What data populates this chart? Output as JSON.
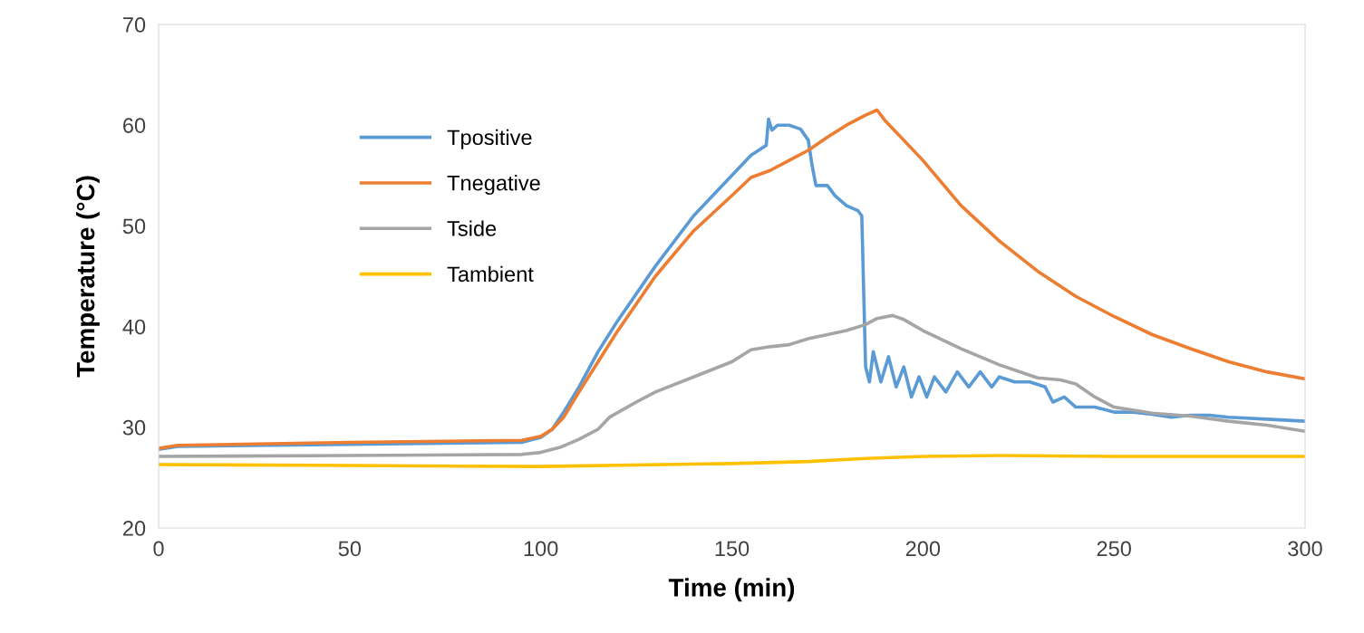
{
  "chart_data": {
    "type": "line",
    "xlabel": "Time (min)",
    "ylabel": "Temperature (°C)",
    "xlim": [
      0,
      300
    ],
    "ylim": [
      20,
      70
    ],
    "xticks": [
      0,
      50,
      100,
      150,
      200,
      250,
      300
    ],
    "yticks": [
      20,
      30,
      40,
      50,
      60,
      70
    ],
    "grid": false,
    "legend": "top left",
    "marker": "none",
    "line_style": "solid",
    "series": [
      {
        "name": "Tpositive",
        "color": "#5b9bd5",
        "x": [
          0,
          5,
          50,
          95,
          100,
          103,
          106,
          110,
          115,
          120,
          130,
          140,
          150,
          155,
          159,
          159.6,
          160.5,
          162,
          165,
          168,
          170,
          171,
          172,
          175,
          177,
          180,
          183,
          184,
          185,
          186,
          187,
          189,
          191,
          193,
          195,
          197,
          199,
          201,
          203,
          206,
          209,
          212,
          215,
          218,
          220,
          224,
          228,
          232,
          234,
          237,
          240,
          245,
          250,
          255,
          260,
          265,
          270,
          275,
          280,
          290,
          300
        ],
        "values": [
          27.8,
          28.1,
          28.3,
          28.5,
          29,
          29.8,
          31.5,
          34,
          37.5,
          40.5,
          46,
          51,
          55,
          57,
          58,
          60.6,
          59.5,
          60,
          60,
          59.6,
          58.5,
          56,
          54,
          54,
          53,
          52,
          51.5,
          51,
          36,
          34.5,
          37.5,
          34.5,
          37,
          34,
          36,
          33,
          35,
          33,
          35,
          33.5,
          35.5,
          34,
          35.5,
          34,
          35,
          34.5,
          34.5,
          34,
          32.5,
          33,
          32,
          32,
          31.5,
          31.5,
          31.3,
          31,
          31.2,
          31.2,
          31,
          30.8,
          30.6
        ]
      },
      {
        "name": "Tnegative",
        "color": "#ed7d31",
        "x": [
          0,
          5,
          50,
          95,
          100,
          103,
          106,
          110,
          115,
          120,
          130,
          140,
          150,
          155,
          160,
          165,
          170,
          175,
          180,
          185,
          188,
          190,
          195,
          200,
          210,
          220,
          230,
          240,
          250,
          260,
          270,
          280,
          290,
          300
        ],
        "values": [
          27.9,
          28.2,
          28.5,
          28.7,
          29.1,
          29.8,
          31,
          33.5,
          36.5,
          39.5,
          45,
          49.5,
          53,
          54.8,
          55.5,
          56.5,
          57.5,
          58.8,
          60,
          61,
          61.5,
          60.5,
          58.5,
          56.5,
          52,
          48.5,
          45.5,
          43,
          41,
          39.2,
          37.8,
          36.5,
          35.5,
          34.8
        ]
      },
      {
        "name": "Tside",
        "color": "#a5a5a5",
        "x": [
          0,
          50,
          95,
          100,
          105,
          110,
          115,
          118,
          125,
          130,
          140,
          150,
          155,
          160,
          165,
          170,
          175,
          180,
          185,
          188,
          192,
          195,
          200,
          210,
          220,
          230,
          236,
          240,
          245,
          250,
          260,
          270,
          280,
          290,
          300
        ],
        "values": [
          27.1,
          27.2,
          27.3,
          27.5,
          28,
          28.8,
          29.8,
          31,
          32.5,
          33.5,
          35,
          36.5,
          37.7,
          38,
          38.2,
          38.8,
          39.2,
          39.6,
          40.2,
          40.8,
          41.1,
          40.7,
          39.6,
          37.8,
          36.2,
          34.9,
          34.7,
          34.3,
          33,
          32,
          31.4,
          31.1,
          30.6,
          30.2,
          29.6
        ]
      },
      {
        "name": "Tambient",
        "color": "#ffc000",
        "x": [
          0,
          50,
          100,
          150,
          170,
          185,
          200,
          220,
          250,
          300
        ],
        "values": [
          26.3,
          26.2,
          26.1,
          26.4,
          26.6,
          26.9,
          27.1,
          27.2,
          27.1,
          27.1
        ]
      }
    ]
  }
}
